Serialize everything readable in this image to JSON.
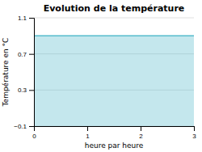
{
  "chart_data": {
    "type": "area",
    "title": "Evolution de la température",
    "xlabel": "heure par heure",
    "ylabel": "Température en °C",
    "x": [
      0,
      3
    ],
    "values": [
      0.9,
      0.9
    ],
    "color": "#55bbcc",
    "xlim": [
      0,
      3
    ],
    "ylim": [
      -0.1,
      1.1
    ],
    "xticks": [
      0,
      1,
      2,
      3
    ],
    "yticks": [
      {
        "value": -0.1,
        "label": "−0.1"
      },
      0.3,
      0.7,
      1.1
    ],
    "grid": true
  }
}
